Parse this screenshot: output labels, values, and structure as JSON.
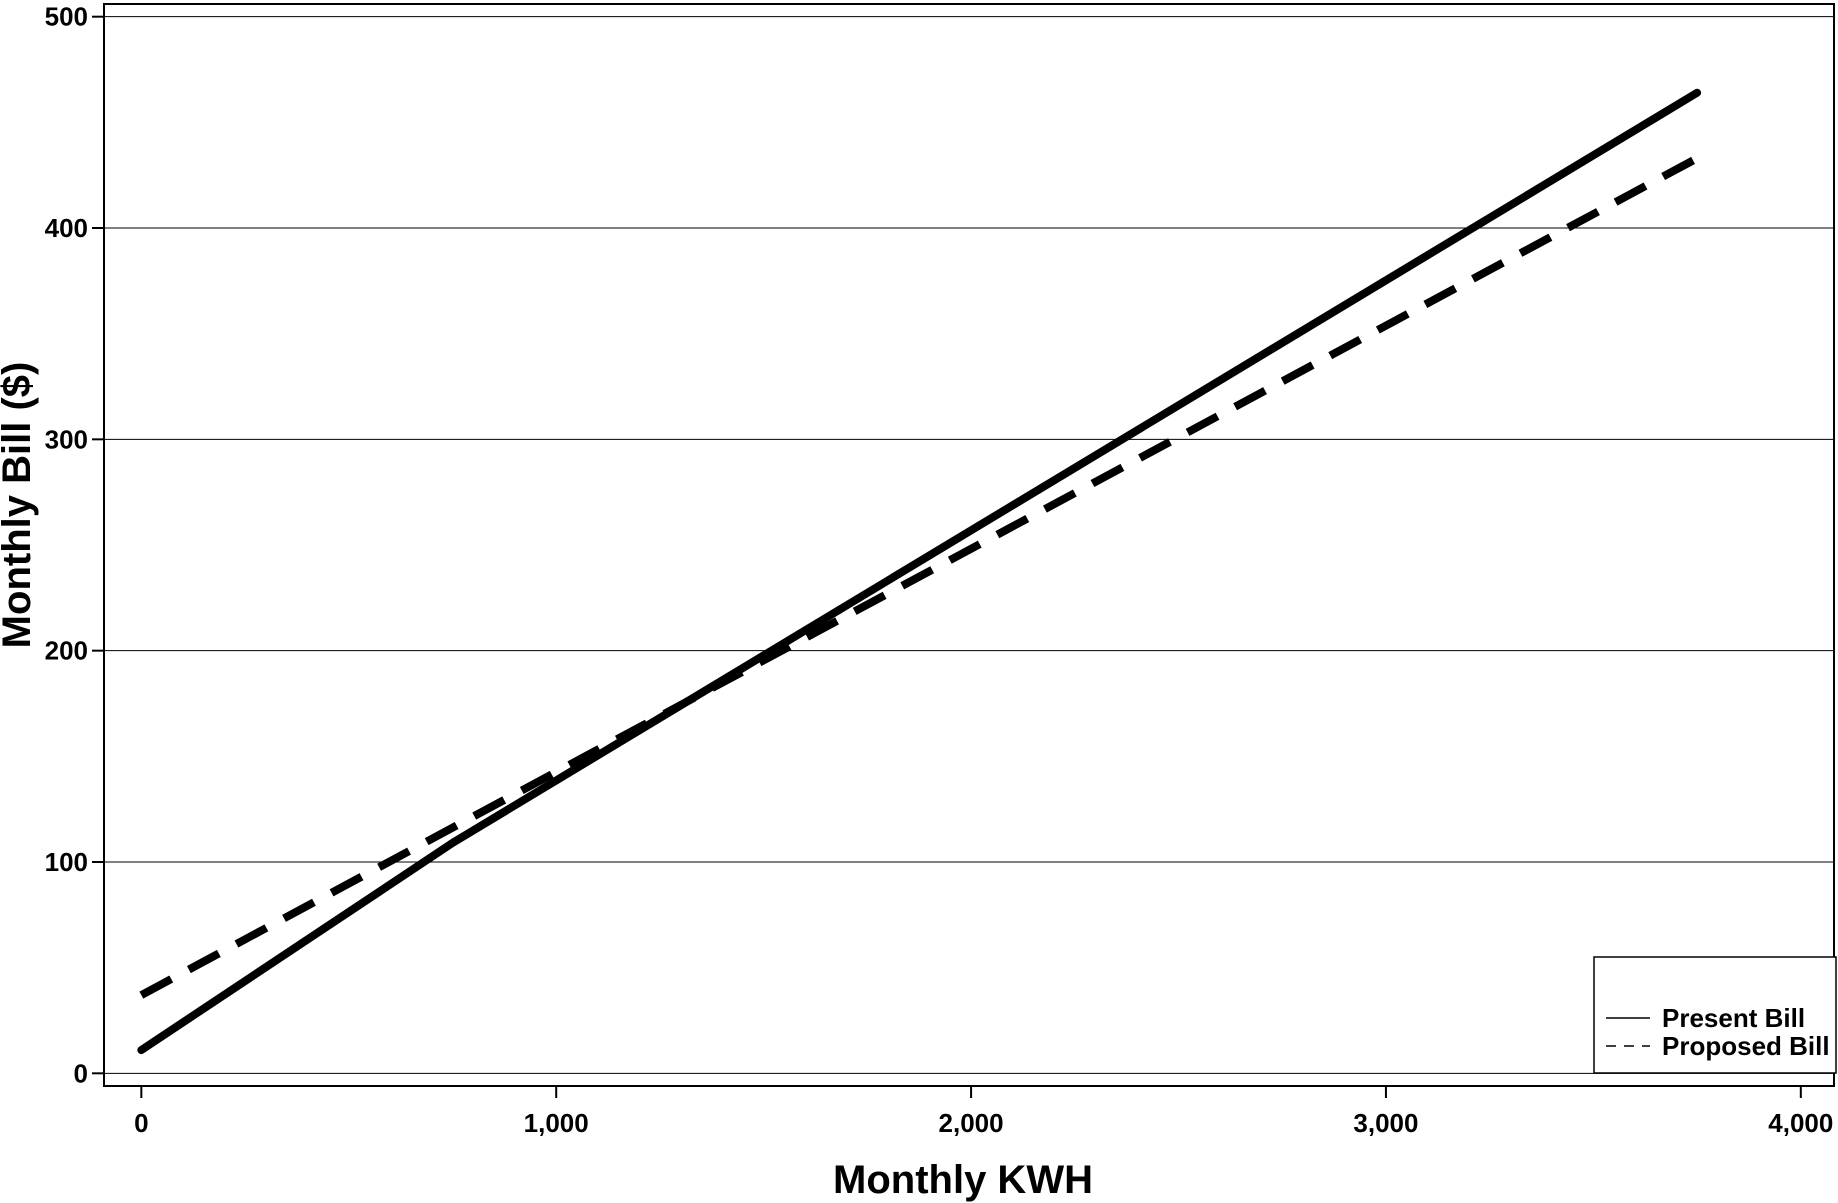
{
  "chart_data": {
    "type": "line",
    "xlabel": "Monthly KWH",
    "ylabel": "Monthly Bill ($)",
    "xlim": [
      -90,
      4080
    ],
    "ylim": [
      -6,
      506
    ],
    "xticks": [
      0,
      1000,
      2000,
      3000,
      4000
    ],
    "xtick_labels": [
      "0",
      "1,000",
      "2,000",
      "3,000",
      "4,000"
    ],
    "yticks": [
      0,
      100,
      200,
      300,
      400,
      500
    ],
    "ytick_labels": [
      "0",
      "100",
      "200",
      "300",
      "400",
      "500"
    ],
    "grid": "horizontal",
    "legend_placement": "bottom-right",
    "series": [
      {
        "name": "Present Bill",
        "style": "solid",
        "x": [
          0,
          750,
          3750
        ],
        "y": [
          11,
          109,
          464
        ]
      },
      {
        "name": "Proposed Bill",
        "style": "dashed",
        "x": [
          0,
          3750
        ],
        "y": [
          37,
          433
        ]
      }
    ]
  }
}
